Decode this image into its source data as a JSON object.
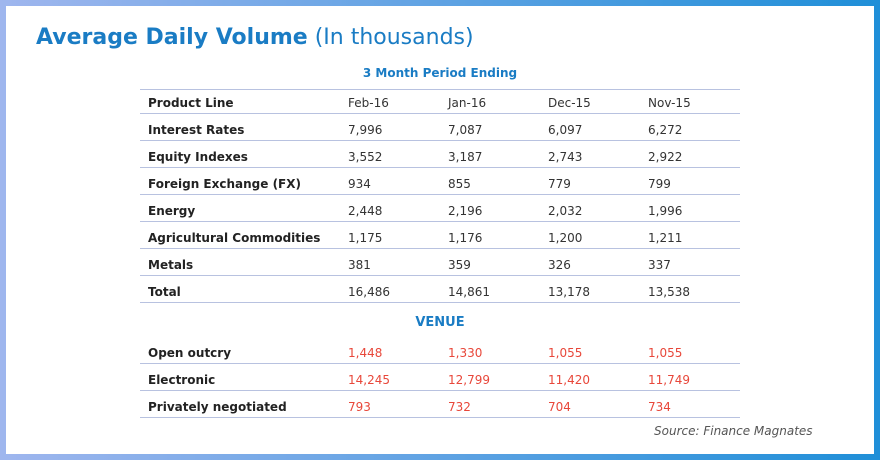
{
  "header": {
    "title": "Average Daily Volume",
    "subtitle": "(In thousands)"
  },
  "table": {
    "caption": "3 Month Period Ending",
    "columns": [
      "Product Line",
      "Feb-16",
      "Jan-16",
      "Dec-15",
      "Nov-15"
    ],
    "rows": [
      [
        "Interest Rates",
        "7,996",
        "7,087",
        "6,097",
        "6,272"
      ],
      [
        "Equity Indexes",
        "3,552",
        "3,187",
        "2,743",
        "2,922"
      ],
      [
        "Foreign Exchange (FX)",
        "934",
        "855",
        "779",
        "799"
      ],
      [
        "Energy",
        "2,448",
        "2,196",
        "2,032",
        "1,996"
      ],
      [
        "Agricultural Commodities",
        "1,175",
        "1,176",
        "1,200",
        "1,211"
      ],
      [
        "Metals",
        "381",
        "359",
        "326",
        "337"
      ],
      [
        "Total",
        "16,486",
        "14,861",
        "13,178",
        "13,538"
      ]
    ],
    "section": "VENUE",
    "venue_rows": [
      [
        "Open outcry",
        "1,448",
        "1,330",
        "1,055",
        "1,055"
      ],
      [
        "Electronic",
        "14,245",
        "12,799",
        "11,420",
        "11,749"
      ],
      [
        "Privately negotiated",
        "793",
        "732",
        "704",
        "734"
      ]
    ]
  },
  "source": "Source: Finance Magnates"
}
